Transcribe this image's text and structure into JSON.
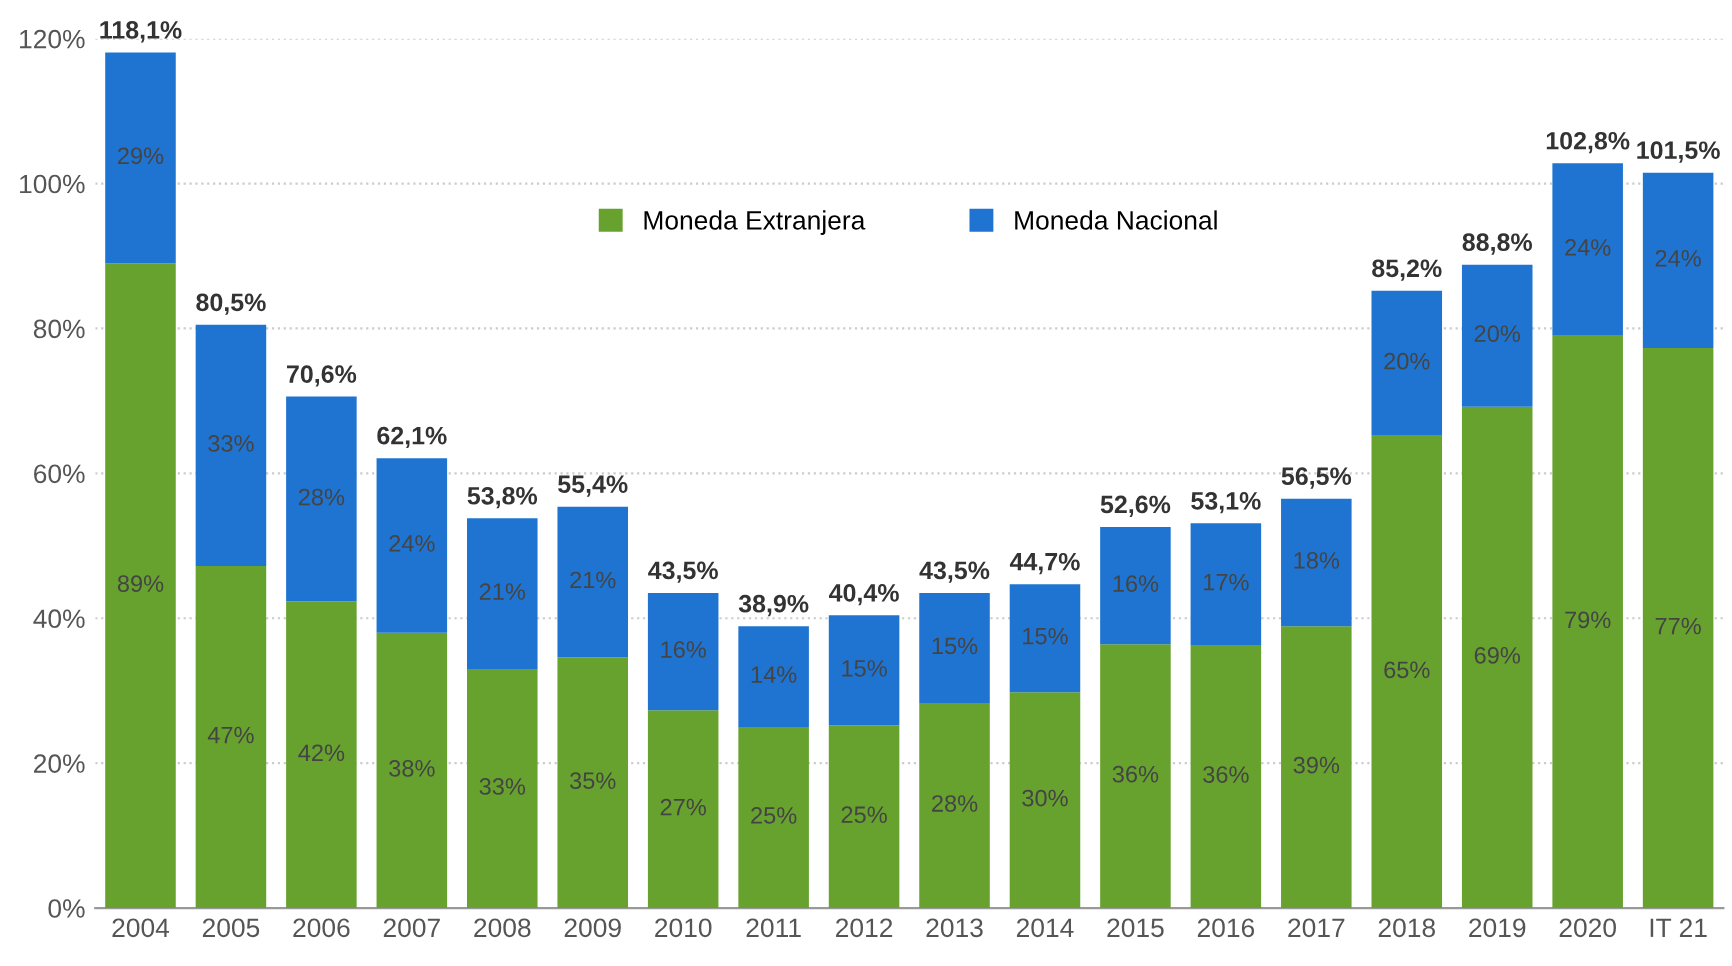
{
  "chart_data": {
    "type": "bar",
    "stacked": true,
    "categories": [
      "2004",
      "2005",
      "2006",
      "2007",
      "2008",
      "2009",
      "2010",
      "2011",
      "2012",
      "2013",
      "2014",
      "2015",
      "2016",
      "2017",
      "2018",
      "2019",
      "2020",
      "IT 21"
    ],
    "series": [
      {
        "name": "Moneda Extranjera",
        "color": "#67a22e",
        "values": [
          89.0,
          47.2,
          42.3,
          38.0,
          33.0,
          34.6,
          27.3,
          25.0,
          25.2,
          28.3,
          29.8,
          36.4,
          36.3,
          38.9,
          65.2,
          69.2,
          79.0,
          77.3
        ],
        "value_labels": [
          "89%",
          "47%",
          "42%",
          "38%",
          "33%",
          "35%",
          "27%",
          "25%",
          "25%",
          "28%",
          "30%",
          "36%",
          "36%",
          "39%",
          "65%",
          "69%",
          "79%",
          "77%"
        ]
      },
      {
        "name": "Moneda Nacional",
        "color": "#1f74d1",
        "values": [
          29.1,
          33.3,
          28.3,
          24.1,
          20.8,
          20.8,
          16.2,
          13.9,
          15.2,
          15.2,
          14.9,
          16.2,
          16.8,
          17.6,
          20.0,
          19.6,
          23.8,
          24.2
        ],
        "value_labels": [
          "29%",
          "33%",
          "28%",
          "24%",
          "21%",
          "21%",
          "16%",
          "14%",
          "15%",
          "15%",
          "15%",
          "16%",
          "17%",
          "18%",
          "20%",
          "20%",
          "24%",
          "24%"
        ]
      }
    ],
    "totals": [
      "118,1%",
      "80,5%",
      "70,6%",
      "62,1%",
      "53,8%",
      "55,4%",
      "43,5%",
      "38,9%",
      "40,4%",
      "43,5%",
      "44,7%",
      "52,6%",
      "53,1%",
      "56,5%",
      "85,2%",
      "88,8%",
      "102,8%",
      "101,5%"
    ],
    "ylim": [
      0,
      120
    ],
    "yticks": [
      {
        "value": 0,
        "label": "0%"
      },
      {
        "value": 20,
        "label": "20%"
      },
      {
        "value": 40,
        "label": "40%"
      },
      {
        "value": 60,
        "label": "60%"
      },
      {
        "value": 80,
        "label": "80%"
      },
      {
        "value": 100,
        "label": "100%"
      },
      {
        "value": 120,
        "label": "120%"
      }
    ],
    "grid": "y",
    "legend": "top"
  }
}
